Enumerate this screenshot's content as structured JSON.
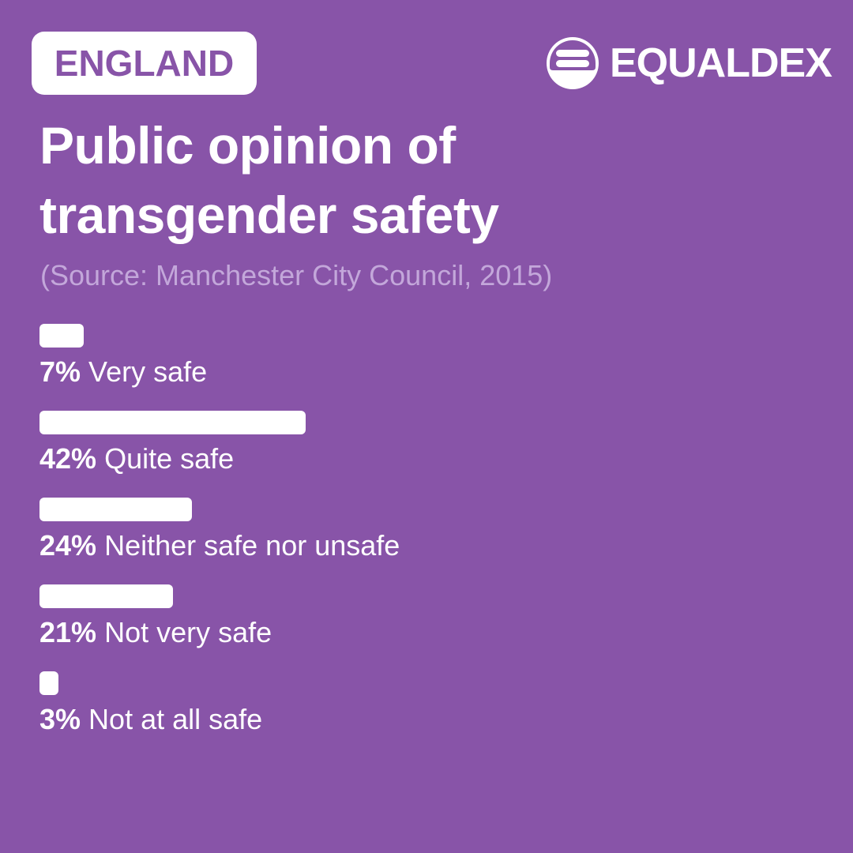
{
  "header": {
    "country_badge": "ENGLAND",
    "brand": "EQUALDEX",
    "brand_icon": "equaldex-logo-icon"
  },
  "title_line1": "Public opinion of",
  "title_line2": "transgender safety",
  "source": "(Source: Manchester City Council, 2015)",
  "colors": {
    "background": "#8854a8",
    "bar": "#ffffff",
    "source_text": "#c3a7da"
  },
  "chart_data": {
    "type": "bar",
    "orientation": "horizontal",
    "title": "Public opinion of transgender safety",
    "subtitle": "(Source: Manchester City Council, 2015)",
    "categories": [
      "Very safe",
      "Quite safe",
      "Neither safe nor unsafe",
      "Not very safe",
      "Not at all safe"
    ],
    "values": [
      7,
      42,
      24,
      21,
      3
    ],
    "unit": "%",
    "xlabel": "",
    "ylabel": "",
    "grid": false,
    "legend": "none"
  },
  "rows": [
    {
      "pct": "7%",
      "label": "Very safe",
      "value": 7
    },
    {
      "pct": "42%",
      "label": "Quite safe",
      "value": 42
    },
    {
      "pct": "24%",
      "label": "Neither safe nor unsafe",
      "value": 24
    },
    {
      "pct": "21%",
      "label": "Not very safe",
      "value": 21
    },
    {
      "pct": "3%",
      "label": "Not at all safe",
      "value": 3
    }
  ]
}
